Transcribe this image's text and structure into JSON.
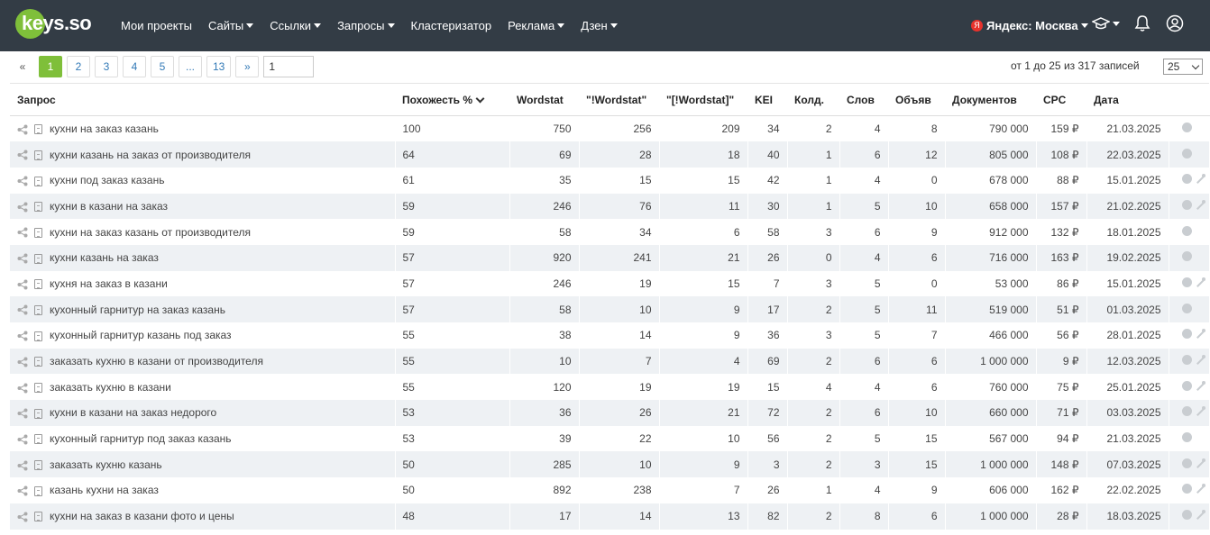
{
  "header": {
    "logo_text": "keys.so",
    "nav": [
      {
        "label": "Мои проекты",
        "dropdown": false
      },
      {
        "label": "Сайты",
        "dropdown": true
      },
      {
        "label": "Ссылки",
        "dropdown": true
      },
      {
        "label": "Запросы",
        "dropdown": true
      },
      {
        "label": "Кластеризатор",
        "dropdown": false
      },
      {
        "label": "Реклама",
        "dropdown": true
      },
      {
        "label": "Дзен",
        "dropdown": true
      }
    ],
    "region_icon": "Я",
    "region": "Яндекс: Москва",
    "icons": [
      "graduation-cap-icon",
      "bell-icon",
      "user-icon"
    ]
  },
  "pagination": {
    "pages": [
      "«",
      "1",
      "2",
      "3",
      "4",
      "5",
      "...",
      "13",
      "»"
    ],
    "active": "1",
    "goto_value": "1"
  },
  "records_text": "от 1 до 25 из 317 записей",
  "per_page": "25",
  "table": {
    "columns": [
      "Запрос",
      "Похожесть %",
      "Wordstat",
      "\"!Wordstat\"",
      "\"[!Wordstat]\"",
      "KEI",
      "Колд.",
      "Слов",
      "Объяв",
      "Документов",
      "CPC",
      "Дата",
      ""
    ],
    "rows": [
      {
        "query": "кухни на заказ казань",
        "sim": "100",
        "ws": "750",
        "ews": "256",
        "bws": "209",
        "kei": "34",
        "kold": "2",
        "slov": "4",
        "obyav": "8",
        "docs": "790 000",
        "cpc": "159 ₽",
        "date": "21.03.2025",
        "wand": false
      },
      {
        "query": "кухни казань на заказ от производителя",
        "sim": "64",
        "ws": "69",
        "ews": "28",
        "bws": "18",
        "kei": "40",
        "kold": "1",
        "slov": "6",
        "obyav": "12",
        "docs": "805 000",
        "cpc": "108 ₽",
        "date": "22.03.2025",
        "wand": false
      },
      {
        "query": "кухни под заказ казань",
        "sim": "61",
        "ws": "35",
        "ews": "15",
        "bws": "15",
        "kei": "42",
        "kold": "1",
        "slov": "4",
        "obyav": "0",
        "docs": "678 000",
        "cpc": "88 ₽",
        "date": "15.01.2025",
        "wand": true
      },
      {
        "query": "кухни в казани на заказ",
        "sim": "59",
        "ws": "246",
        "ews": "76",
        "bws": "11",
        "kei": "30",
        "kold": "1",
        "slov": "5",
        "obyav": "10",
        "docs": "658 000",
        "cpc": "157 ₽",
        "date": "21.02.2025",
        "wand": true
      },
      {
        "query": "кухни на заказ казань от производителя",
        "sim": "59",
        "ws": "58",
        "ews": "34",
        "bws": "6",
        "kei": "58",
        "kold": "3",
        "slov": "6",
        "obyav": "9",
        "docs": "912 000",
        "cpc": "132 ₽",
        "date": "18.01.2025",
        "wand": false
      },
      {
        "query": "кухни казань на заказ",
        "sim": "57",
        "ws": "920",
        "ews": "241",
        "bws": "21",
        "kei": "26",
        "kold": "0",
        "slov": "4",
        "obyav": "6",
        "docs": "716 000",
        "cpc": "163 ₽",
        "date": "19.02.2025",
        "wand": false
      },
      {
        "query": "кухня на заказ в казани",
        "sim": "57",
        "ws": "246",
        "ews": "19",
        "bws": "15",
        "kei": "7",
        "kold": "3",
        "slov": "5",
        "obyav": "0",
        "docs": "53 000",
        "cpc": "86 ₽",
        "date": "15.01.2025",
        "wand": true
      },
      {
        "query": "кухонный гарнитур на заказ казань",
        "sim": "57",
        "ws": "58",
        "ews": "10",
        "bws": "9",
        "kei": "17",
        "kold": "2",
        "slov": "5",
        "obyav": "11",
        "docs": "519 000",
        "cpc": "51 ₽",
        "date": "01.03.2025",
        "wand": false
      },
      {
        "query": "кухонный гарнитур казань под заказ",
        "sim": "55",
        "ws": "38",
        "ews": "14",
        "bws": "9",
        "kei": "36",
        "kold": "3",
        "slov": "5",
        "obyav": "7",
        "docs": "466 000",
        "cpc": "56 ₽",
        "date": "28.01.2025",
        "wand": true
      },
      {
        "query": "заказать кухню в казани от производителя",
        "sim": "55",
        "ws": "10",
        "ews": "7",
        "bws": "4",
        "kei": "69",
        "kold": "2",
        "slov": "6",
        "obyav": "6",
        "docs": "1 000 000",
        "cpc": "9 ₽",
        "date": "12.03.2025",
        "wand": true
      },
      {
        "query": "заказать кухню в казани",
        "sim": "55",
        "ws": "120",
        "ews": "19",
        "bws": "19",
        "kei": "15",
        "kold": "4",
        "slov": "4",
        "obyav": "6",
        "docs": "760 000",
        "cpc": "75 ₽",
        "date": "25.01.2025",
        "wand": true
      },
      {
        "query": "кухни в казани на заказ недорого",
        "sim": "53",
        "ws": "36",
        "ews": "26",
        "bws": "21",
        "kei": "72",
        "kold": "2",
        "slov": "6",
        "obyav": "10",
        "docs": "660 000",
        "cpc": "71 ₽",
        "date": "03.03.2025",
        "wand": true
      },
      {
        "query": "кухонный гарнитур под заказ казань",
        "sim": "53",
        "ws": "39",
        "ews": "22",
        "bws": "10",
        "kei": "56",
        "kold": "2",
        "slov": "5",
        "obyav": "15",
        "docs": "567 000",
        "cpc": "94 ₽",
        "date": "21.03.2025",
        "wand": false
      },
      {
        "query": "заказать кухню казань",
        "sim": "50",
        "ws": "285",
        "ews": "10",
        "bws": "9",
        "kei": "3",
        "kold": "2",
        "slov": "3",
        "obyav": "15",
        "docs": "1 000 000",
        "cpc": "148 ₽",
        "date": "07.03.2025",
        "wand": true
      },
      {
        "query": "казань кухни на заказ",
        "sim": "50",
        "ws": "892",
        "ews": "238",
        "bws": "7",
        "kei": "26",
        "kold": "1",
        "slov": "4",
        "obyav": "9",
        "docs": "606 000",
        "cpc": "162 ₽",
        "date": "22.02.2025",
        "wand": true
      },
      {
        "query": "кухни на заказ в казани фото и цены",
        "sim": "48",
        "ws": "17",
        "ews": "14",
        "bws": "13",
        "kei": "82",
        "kold": "2",
        "slov": "8",
        "obyav": "6",
        "docs": "1 000 000",
        "cpc": "28 ₽",
        "date": "18.03.2025",
        "wand": true
      }
    ]
  }
}
